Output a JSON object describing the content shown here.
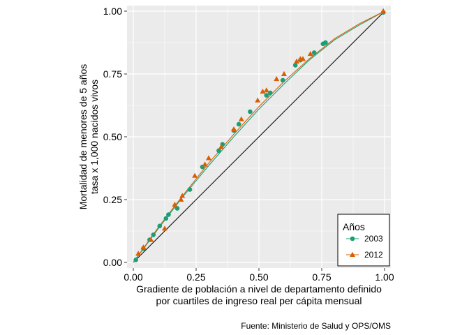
{
  "chart_data": {
    "type": "scatter",
    "title": "",
    "xlabel_lines": [
      "Gradiente de población a nivel de departamento definido",
      "por cuartiles de ingreso real per cápita mensual"
    ],
    "ylabel_lines": [
      "Mortalidad de menores de 5 años",
      "tasa x 1,000 nacidos vivos"
    ],
    "caption": "Fuente: Ministerio de Salud y OPS/OMS",
    "xlim": [
      0,
      1
    ],
    "ylim": [
      0,
      1
    ],
    "xticks": [
      0,
      0.25,
      0.5,
      0.75,
      1
    ],
    "yticks": [
      0,
      0.25,
      0.5,
      0.75,
      1
    ],
    "xtick_labels": [
      "0.00",
      "0.25",
      "0.50",
      "0.75",
      "1.00"
    ],
    "ytick_labels": [
      "0.00",
      "0.25",
      "0.50",
      "0.75",
      "1.00"
    ],
    "grid": true,
    "legend": {
      "title": "Años",
      "position": "bottom-right"
    },
    "equality_line": {
      "x": [
        0,
        1
      ],
      "y": [
        0,
        1
      ],
      "color": "#000000"
    },
    "series": [
      {
        "name": "2003",
        "color": "#1b9e77",
        "marker": "circle",
        "points": [
          [
            0.01,
            0.01
          ],
          [
            0.04,
            0.055
          ],
          [
            0.065,
            0.09
          ],
          [
            0.08,
            0.11
          ],
          [
            0.105,
            0.145
          ],
          [
            0.13,
            0.175
          ],
          [
            0.14,
            0.19
          ],
          [
            0.175,
            0.215
          ],
          [
            0.225,
            0.29
          ],
          [
            0.275,
            0.38
          ],
          [
            0.34,
            0.445
          ],
          [
            0.355,
            0.47
          ],
          [
            0.4,
            0.525
          ],
          [
            0.42,
            0.55
          ],
          [
            0.465,
            0.6
          ],
          [
            0.53,
            0.665
          ],
          [
            0.545,
            0.675
          ],
          [
            0.595,
            0.725
          ],
          [
            0.645,
            0.785
          ],
          [
            0.665,
            0.805
          ],
          [
            0.72,
            0.835
          ],
          [
            0.755,
            0.87
          ],
          [
            0.765,
            0.875
          ],
          [
            0.995,
            0.995
          ]
        ],
        "fit": [
          [
            0,
            0
          ],
          [
            0.1,
            0.135
          ],
          [
            0.2,
            0.265
          ],
          [
            0.3,
            0.385
          ],
          [
            0.4,
            0.5
          ],
          [
            0.5,
            0.61
          ],
          [
            0.6,
            0.71
          ],
          [
            0.7,
            0.805
          ],
          [
            0.8,
            0.885
          ],
          [
            0.9,
            0.945
          ],
          [
            1,
            1
          ]
        ]
      },
      {
        "name": "2012",
        "color": "#d95f02",
        "marker": "triangle",
        "points": [
          [
            0.02,
            0.035
          ],
          [
            0.04,
            0.06
          ],
          [
            0.07,
            0.09
          ],
          [
            0.125,
            0.135
          ],
          [
            0.165,
            0.23
          ],
          [
            0.19,
            0.25
          ],
          [
            0.195,
            0.265
          ],
          [
            0.245,
            0.345
          ],
          [
            0.285,
            0.39
          ],
          [
            0.3,
            0.415
          ],
          [
            0.35,
            0.46
          ],
          [
            0.4,
            0.53
          ],
          [
            0.43,
            0.57
          ],
          [
            0.495,
            0.645
          ],
          [
            0.515,
            0.68
          ],
          [
            0.53,
            0.685
          ],
          [
            0.57,
            0.73
          ],
          [
            0.6,
            0.75
          ],
          [
            0.65,
            0.8
          ],
          [
            0.665,
            0.81
          ],
          [
            0.675,
            0.81
          ],
          [
            0.705,
            0.83
          ],
          [
            0.995,
            1.0
          ]
        ],
        "fit": [
          [
            0,
            0
          ],
          [
            0.1,
            0.14
          ],
          [
            0.2,
            0.27
          ],
          [
            0.3,
            0.395
          ],
          [
            0.4,
            0.51
          ],
          [
            0.5,
            0.62
          ],
          [
            0.6,
            0.72
          ],
          [
            0.7,
            0.81
          ],
          [
            0.8,
            0.89
          ],
          [
            0.9,
            0.95
          ],
          [
            1,
            1
          ]
        ]
      }
    ]
  }
}
